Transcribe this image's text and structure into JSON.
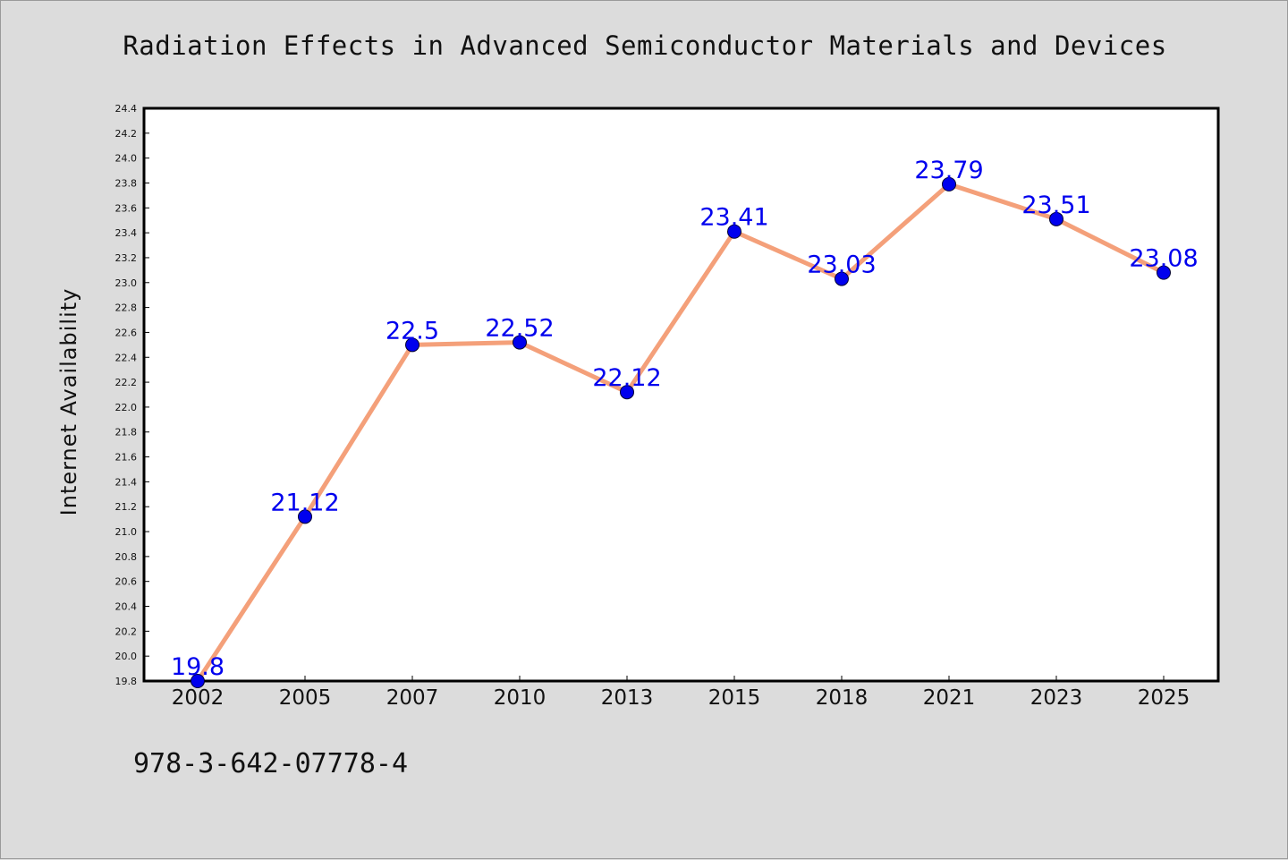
{
  "chart_data": {
    "type": "line",
    "title": "Radiation Effects in Advanced Semiconductor Materials and Devices",
    "xlabel": "",
    "ylabel": "Internet Availability",
    "categories": [
      "2002",
      "2005",
      "2007",
      "2010",
      "2013",
      "2015",
      "2018",
      "2021",
      "2023",
      "2025"
    ],
    "series": [
      {
        "values": [
          19.8,
          21.12,
          22.5,
          22.52,
          22.12,
          23.41,
          23.03,
          23.79,
          23.51,
          23.08
        ],
        "labels": [
          "19.8",
          "21.12",
          "22.5",
          "22.52",
          "22.12",
          "23.41",
          "23.03",
          "23.79",
          "23.51",
          "23.08"
        ],
        "line_color": "#f4a07a",
        "marker_color": "#0000ee"
      }
    ],
    "yticks": [
      "19.8",
      "20.0",
      "20.2",
      "20.4",
      "20.6",
      "20.8",
      "21.0",
      "21.2",
      "21.4",
      "21.6",
      "21.8",
      "22.0",
      "22.2",
      "22.4",
      "22.6",
      "22.8",
      "23.0",
      "23.2",
      "23.4",
      "23.6",
      "23.8",
      "24.0",
      "24.2",
      "24.4"
    ],
    "ylim": [
      19.8,
      24.4
    ],
    "grid": false,
    "legend": "none",
    "data_label_color": "#0000ee"
  },
  "footnote": "978-3-642-07778-4"
}
